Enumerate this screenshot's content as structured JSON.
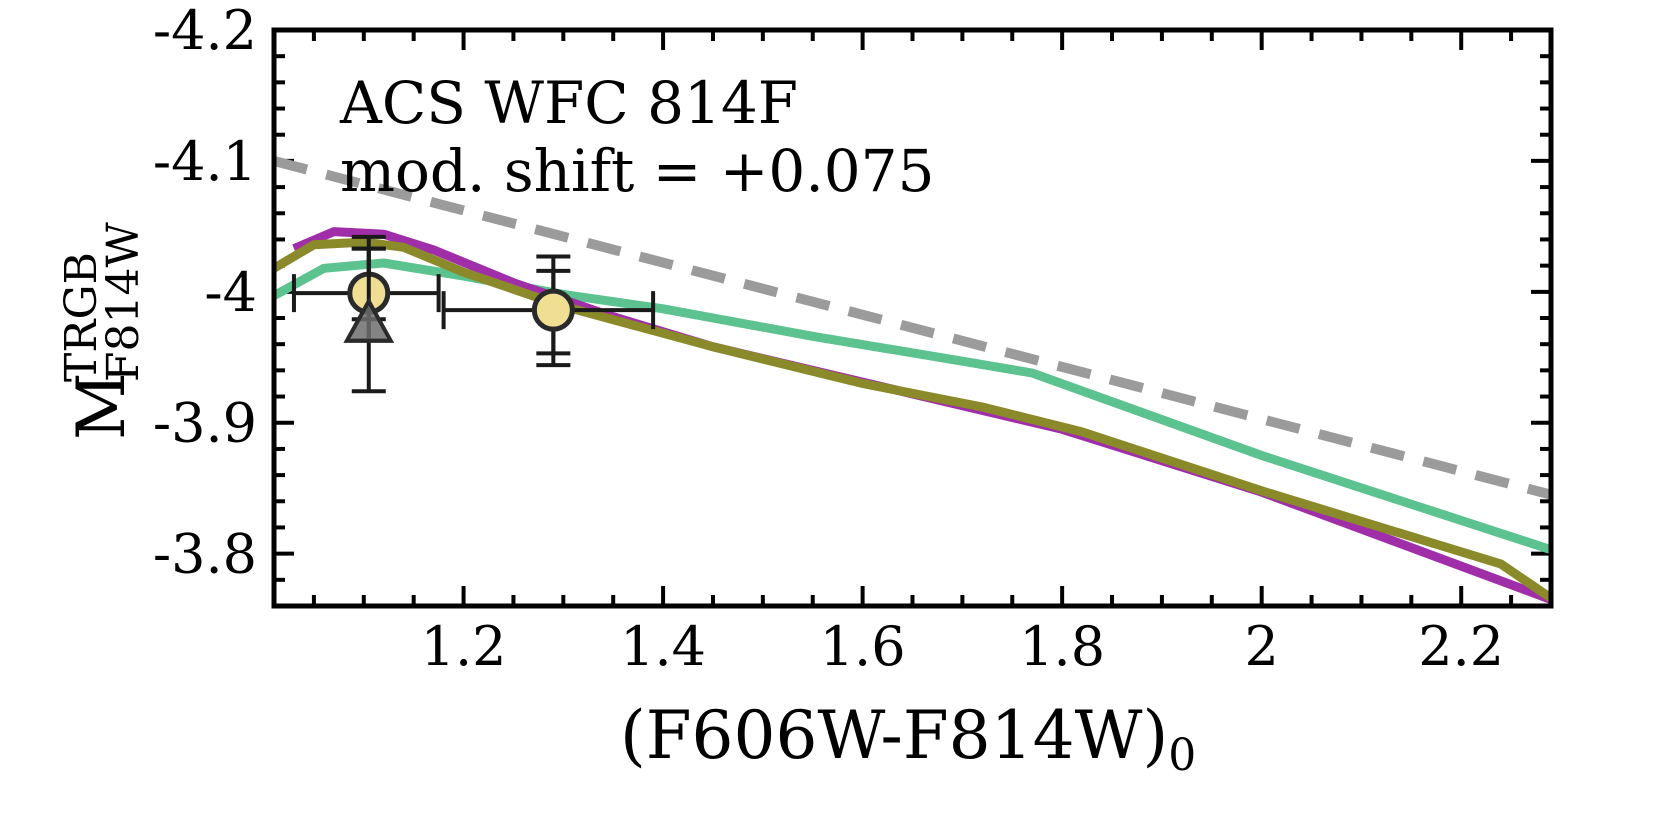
{
  "chart_data": {
    "type": "line",
    "xlabel_main": "(F606W-F814W)",
    "xlabel_sub": "0",
    "ylabel_main": "M",
    "ylabel_sup": "TRGB",
    "ylabel_sub": "F814W",
    "xlim": [
      1.01,
      2.29
    ],
    "ylim": [
      -4.2,
      -3.76
    ],
    "y_inverted": true,
    "xticks": [
      1.2,
      1.4,
      1.6,
      1.8,
      2.0,
      2.2
    ],
    "xtick_labels": [
      "1.2",
      "1.4",
      "1.6",
      "1.8",
      "2",
      "2.2"
    ],
    "yticks": [
      -4.2,
      -4.1,
      -4.0,
      -3.9,
      -3.8
    ],
    "ytick_labels": [
      "-4.2",
      "-4.1",
      "-4",
      "-3.9",
      "-3.8"
    ],
    "annotations": [
      "ACS WFC 814F",
      "mod. shift = +0.075"
    ],
    "series": [
      {
        "name": "green model",
        "color": "#5cc28f",
        "style": "solid",
        "x": [
          1.01,
          1.06,
          1.12,
          1.2,
          1.3,
          1.4,
          1.55,
          1.7,
          1.77,
          2.0,
          2.29
        ],
        "y": [
          -3.997,
          -4.018,
          -4.022,
          -4.012,
          -3.998,
          -3.987,
          -3.966,
          -3.947,
          -3.938,
          -3.875,
          -3.803
        ]
      },
      {
        "name": "purple model",
        "color": "#a02ea8",
        "style": "solid",
        "x": [
          1.03,
          1.07,
          1.12,
          1.17,
          1.25,
          1.35,
          1.45,
          1.6,
          1.8,
          2.0,
          2.29
        ],
        "y": [
          -4.033,
          -4.046,
          -4.044,
          -4.032,
          -4.007,
          -3.981,
          -3.958,
          -3.931,
          -3.895,
          -3.847,
          -3.765
        ]
      },
      {
        "name": "olive model",
        "color": "#8b8a2a",
        "style": "solid",
        "x": [
          1.01,
          1.05,
          1.1,
          1.14,
          1.2,
          1.3,
          1.45,
          1.6,
          1.72,
          1.82,
          2.0,
          2.24,
          2.29
        ],
        "y": [
          -4.018,
          -4.036,
          -4.038,
          -4.034,
          -4.015,
          -3.989,
          -3.958,
          -3.93,
          -3.912,
          -3.893,
          -3.848,
          -3.792,
          -3.766
        ]
      },
      {
        "name": "dashed reference",
        "color": "#9b9b9b",
        "style": "dashed",
        "x": [
          1.01,
          2.29
        ],
        "y": [
          -4.1,
          -3.845
        ]
      }
    ],
    "points": [
      {
        "name": "circle point 1",
        "marker": "circle",
        "x": 1.105,
        "y": -3.999,
        "xerr_low": 1.03,
        "xerr_high": 1.175,
        "yerr": [
          [
            -4.042,
            -3.963
          ],
          [
            -4.033,
            -3.979
          ]
        ]
      },
      {
        "name": "triangle point",
        "marker": "triangle",
        "x": 1.105,
        "y": -3.976,
        "xerr_low": null,
        "xerr_high": null,
        "yerr": [
          [
            -4.033,
            -3.924
          ]
        ]
      },
      {
        "name": "circle point 2",
        "marker": "circle",
        "x": 1.29,
        "y": -3.986,
        "xerr_low": 1.18,
        "xerr_high": 1.39,
        "yerr": [
          [
            -4.027,
            -3.944
          ],
          [
            -4.016,
            -3.953
          ]
        ]
      }
    ]
  }
}
